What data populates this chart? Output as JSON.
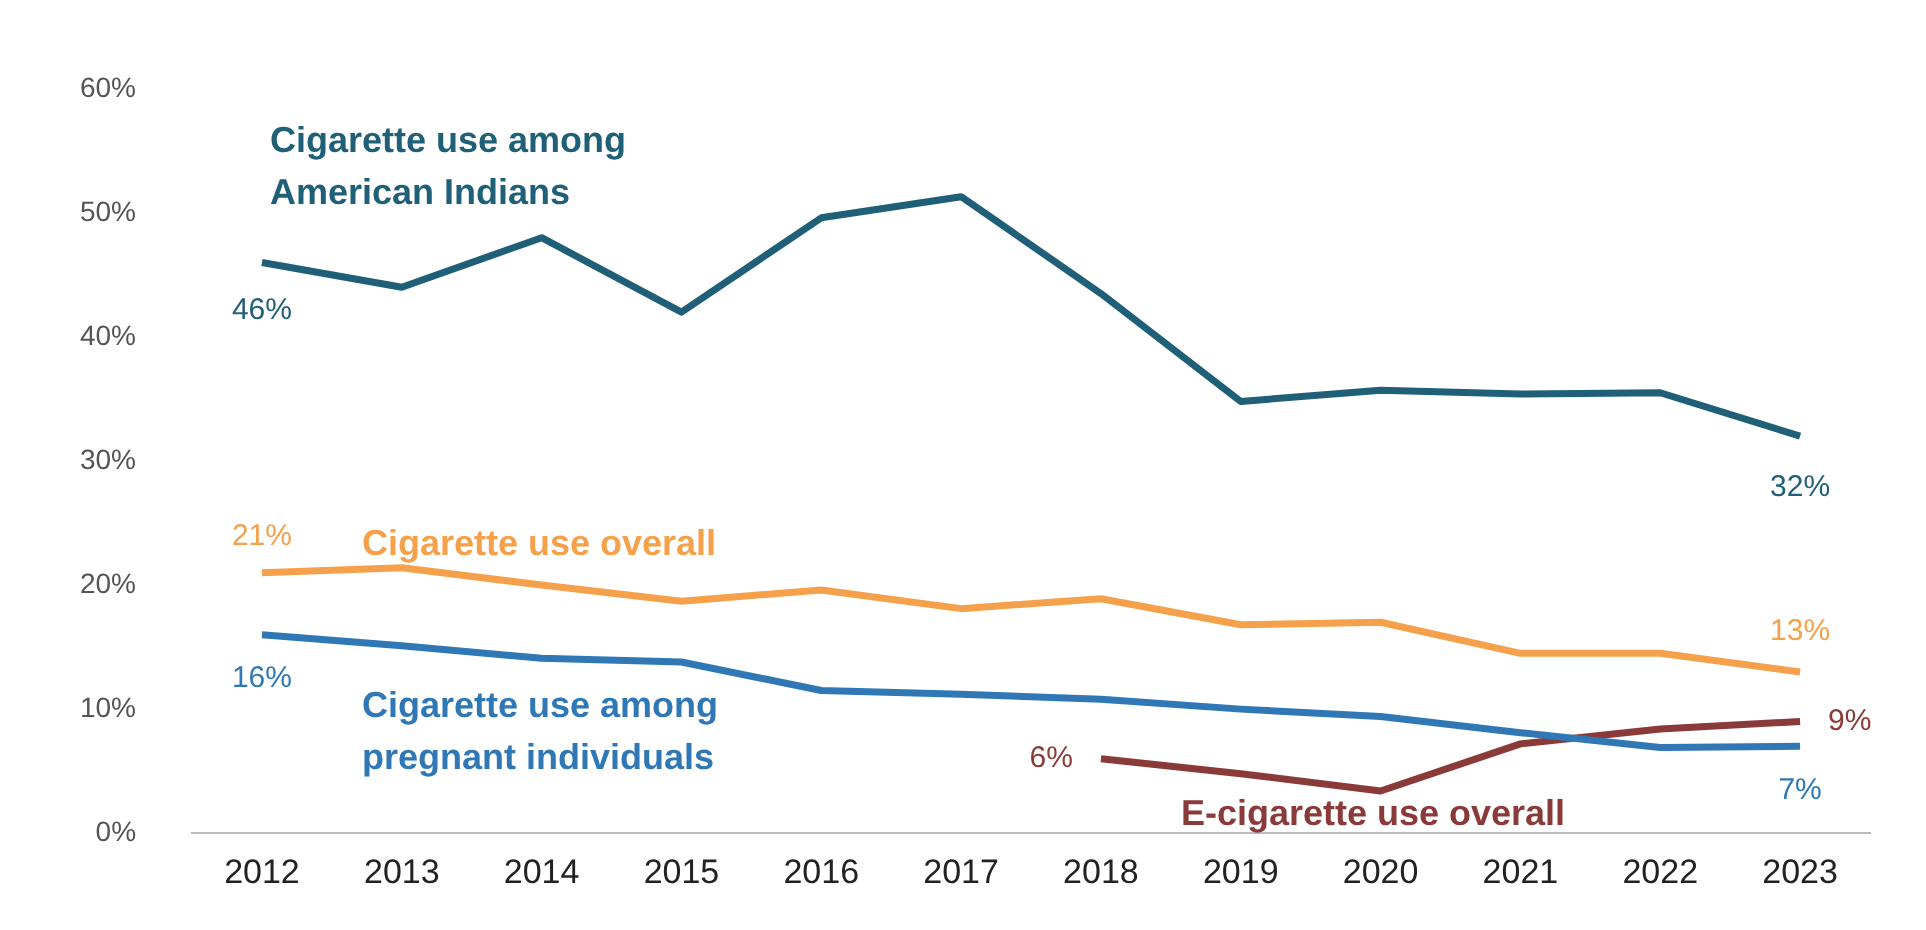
{
  "chart_data": {
    "type": "line",
    "categories": [
      "2012",
      "2013",
      "2014",
      "2015",
      "2016",
      "2017",
      "2018",
      "2019",
      "2020",
      "2021",
      "2022",
      "2023"
    ],
    "series": [
      {
        "name": "Cigarette use among American Indians",
        "color": "#1f5f78",
        "values": [
          46,
          44,
          48,
          42,
          49.6,
          51.3,
          43.5,
          34.8,
          35.7,
          35.4,
          35.5,
          32
        ],
        "value_labels": [
          "46%",
          null,
          null,
          null,
          null,
          null,
          null,
          null,
          null,
          null,
          null,
          "32%"
        ]
      },
      {
        "name": "Cigarette use overall",
        "color": "#f5a04a",
        "values": [
          21,
          21.4,
          20,
          18.7,
          19.6,
          18.1,
          18.9,
          16.8,
          17,
          14.5,
          14.5,
          13
        ],
        "value_labels": [
          "21%",
          null,
          null,
          null,
          null,
          null,
          null,
          null,
          null,
          null,
          null,
          "13%"
        ]
      },
      {
        "name": "Cigarette use among pregnant individuals",
        "color": "#2f78b5",
        "values": [
          16,
          15.1,
          14.1,
          13.8,
          11.5,
          11.2,
          10.8,
          10,
          9.4,
          8.1,
          6.9,
          7
        ],
        "value_labels": [
          "16%",
          null,
          null,
          null,
          null,
          null,
          null,
          null,
          null,
          null,
          null,
          "7%"
        ]
      },
      {
        "name": "E-cigarette use overall",
        "color": "#8b3a3a",
        "values": [
          null,
          null,
          null,
          null,
          null,
          null,
          6,
          4.8,
          3.4,
          7.2,
          8.4,
          9
        ],
        "value_labels": [
          null,
          null,
          null,
          null,
          null,
          null,
          "6%",
          null,
          null,
          null,
          null,
          "9%"
        ]
      }
    ],
    "ylim": [
      0,
      60
    ],
    "yticks": [
      {
        "value": 0,
        "label": "0%"
      },
      {
        "value": 10,
        "label": "10%"
      },
      {
        "value": 20,
        "label": "20%"
      },
      {
        "value": 30,
        "label": "30%"
      },
      {
        "value": 40,
        "label": "40%"
      },
      {
        "value": 50,
        "label": "50%"
      },
      {
        "value": 60,
        "label": "60%"
      }
    ],
    "grid": false,
    "legend": false,
    "marker": "none",
    "line_style": "solid"
  }
}
